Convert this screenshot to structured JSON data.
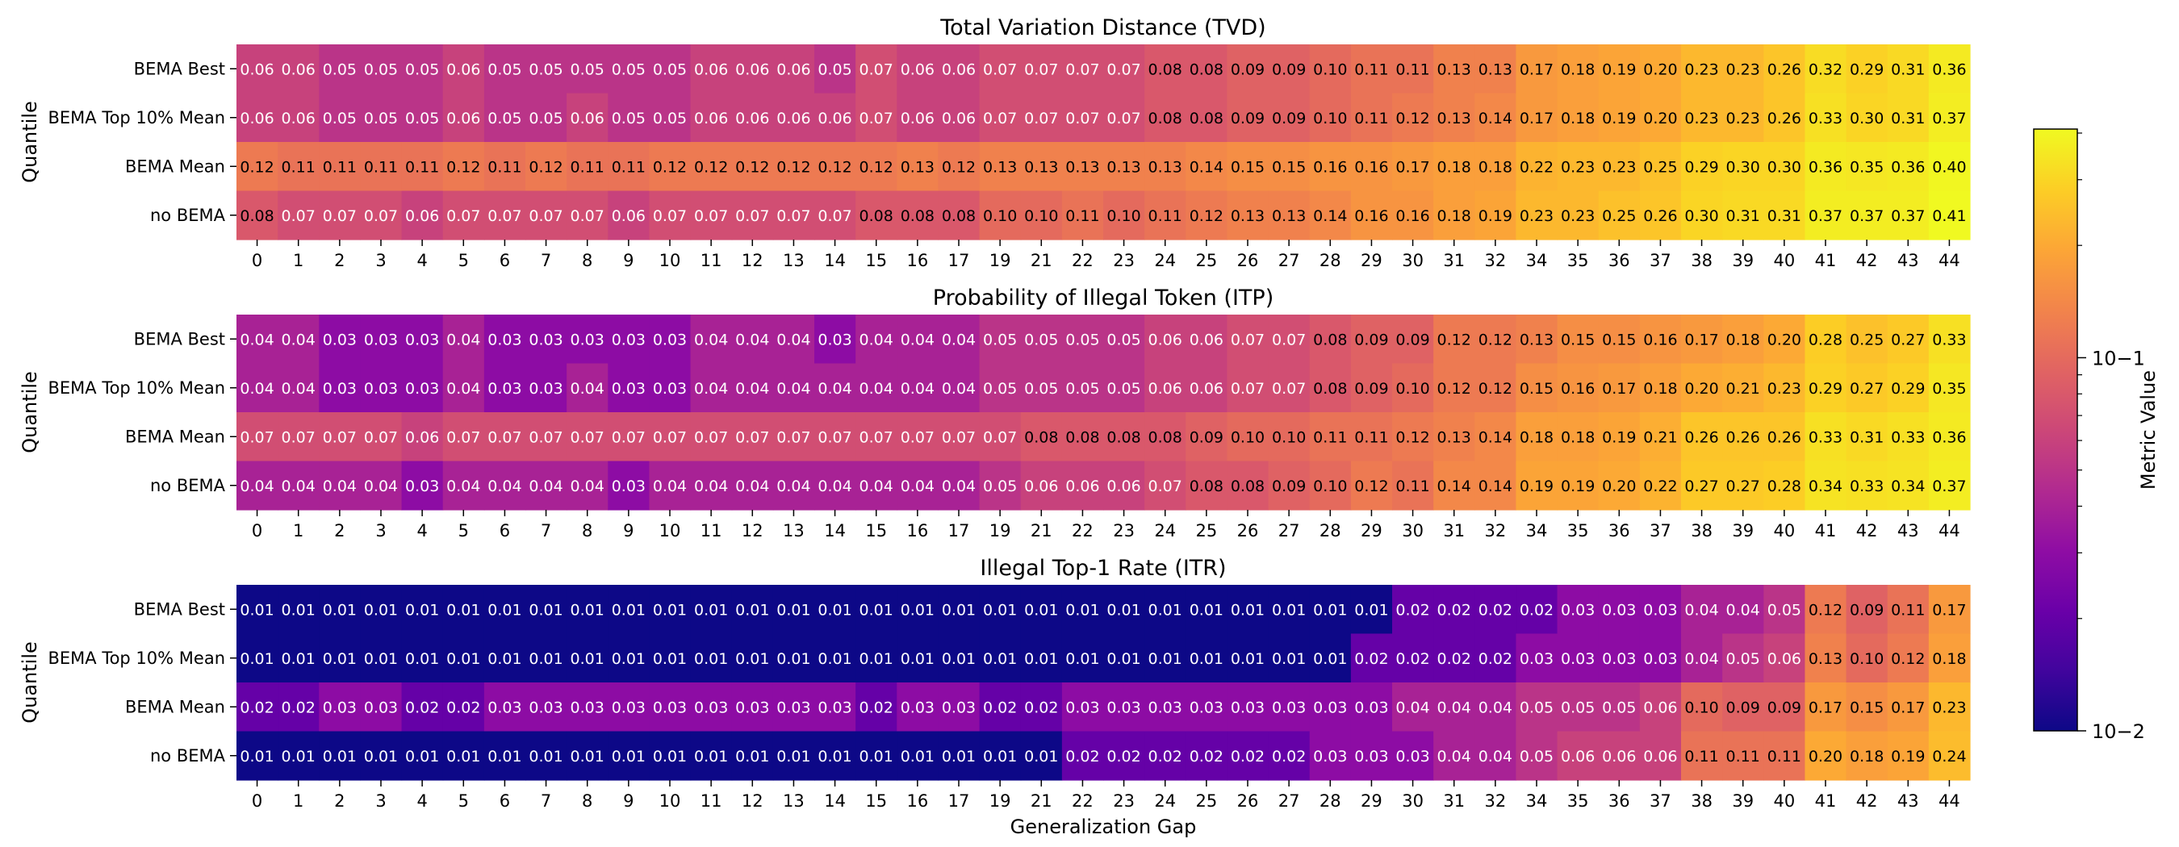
{
  "chart_data": {
    "type": "heatmap",
    "color_scale": "plasma-log",
    "xlabel": "Generalization Gap",
    "ylabel": "Quantile",
    "rows": [
      "BEMA Best",
      "BEMA Top 10% Mean",
      "BEMA Mean",
      "no BEMA"
    ],
    "columns": [
      "0",
      "1",
      "2",
      "3",
      "4",
      "5",
      "6",
      "7",
      "8",
      "9",
      "10",
      "11",
      "12",
      "13",
      "14",
      "15",
      "16",
      "17",
      "19",
      "21",
      "22",
      "23",
      "24",
      "25",
      "26",
      "27",
      "28",
      "29",
      "30",
      "31",
      "32",
      "34",
      "35",
      "36",
      "37",
      "38",
      "39",
      "40",
      "41",
      "42",
      "43",
      "44"
    ],
    "panels": [
      {
        "title": "Total Variation Distance (TVD)",
        "values": [
          [
            "0.06",
            "0.06",
            "0.05",
            "0.05",
            "0.05",
            "0.06",
            "0.05",
            "0.05",
            "0.05",
            "0.05",
            "0.05",
            "0.06",
            "0.06",
            "0.06",
            "0.05",
            "0.07",
            "0.06",
            "0.06",
            "0.07",
            "0.07",
            "0.07",
            "0.07",
            "0.08",
            "0.08",
            "0.09",
            "0.09",
            "0.10",
            "0.11",
            "0.11",
            "0.13",
            "0.13",
            "0.17",
            "0.18",
            "0.19",
            "0.20",
            "0.23",
            "0.23",
            "0.26",
            "0.32",
            "0.29",
            "0.31",
            "0.36"
          ],
          [
            "0.06",
            "0.06",
            "0.05",
            "0.05",
            "0.05",
            "0.06",
            "0.05",
            "0.05",
            "0.06",
            "0.05",
            "0.05",
            "0.06",
            "0.06",
            "0.06",
            "0.06",
            "0.07",
            "0.06",
            "0.06",
            "0.07",
            "0.07",
            "0.07",
            "0.07",
            "0.08",
            "0.08",
            "0.09",
            "0.09",
            "0.10",
            "0.11",
            "0.12",
            "0.13",
            "0.14",
            "0.17",
            "0.18",
            "0.19",
            "0.20",
            "0.23",
            "0.23",
            "0.26",
            "0.33",
            "0.30",
            "0.31",
            "0.37"
          ],
          [
            "0.12",
            "0.11",
            "0.11",
            "0.11",
            "0.11",
            "0.12",
            "0.11",
            "0.12",
            "0.11",
            "0.11",
            "0.12",
            "0.12",
            "0.12",
            "0.12",
            "0.12",
            "0.12",
            "0.13",
            "0.12",
            "0.13",
            "0.13",
            "0.13",
            "0.13",
            "0.13",
            "0.14",
            "0.15",
            "0.15",
            "0.16",
            "0.16",
            "0.17",
            "0.18",
            "0.18",
            "0.22",
            "0.23",
            "0.23",
            "0.25",
            "0.29",
            "0.30",
            "0.30",
            "0.36",
            "0.35",
            "0.36",
            "0.40"
          ],
          [
            "0.08",
            "0.07",
            "0.07",
            "0.07",
            "0.06",
            "0.07",
            "0.07",
            "0.07",
            "0.07",
            "0.06",
            "0.07",
            "0.07",
            "0.07",
            "0.07",
            "0.07",
            "0.08",
            "0.08",
            "0.08",
            "0.10",
            "0.10",
            "0.11",
            "0.10",
            "0.11",
            "0.12",
            "0.13",
            "0.13",
            "0.14",
            "0.16",
            "0.16",
            "0.18",
            "0.19",
            "0.23",
            "0.23",
            "0.25",
            "0.26",
            "0.30",
            "0.31",
            "0.31",
            "0.37",
            "0.37",
            "0.37",
            "0.41"
          ]
        ]
      },
      {
        "title": "Probability of Illegal Token (ITP)",
        "values": [
          [
            "0.04",
            "0.04",
            "0.03",
            "0.03",
            "0.03",
            "0.04",
            "0.03",
            "0.03",
            "0.03",
            "0.03",
            "0.03",
            "0.04",
            "0.04",
            "0.04",
            "0.03",
            "0.04",
            "0.04",
            "0.04",
            "0.05",
            "0.05",
            "0.05",
            "0.05",
            "0.06",
            "0.06",
            "0.07",
            "0.07",
            "0.08",
            "0.09",
            "0.09",
            "0.12",
            "0.12",
            "0.13",
            "0.15",
            "0.15",
            "0.16",
            "0.17",
            "0.18",
            "0.20",
            "0.28",
            "0.25",
            "0.27",
            "0.33"
          ],
          [
            "0.04",
            "0.04",
            "0.03",
            "0.03",
            "0.03",
            "0.04",
            "0.03",
            "0.03",
            "0.04",
            "0.03",
            "0.03",
            "0.04",
            "0.04",
            "0.04",
            "0.04",
            "0.04",
            "0.04",
            "0.04",
            "0.05",
            "0.05",
            "0.05",
            "0.05",
            "0.06",
            "0.06",
            "0.07",
            "0.07",
            "0.08",
            "0.09",
            "0.10",
            "0.12",
            "0.12",
            "0.15",
            "0.16",
            "0.17",
            "0.18",
            "0.20",
            "0.21",
            "0.23",
            "0.29",
            "0.27",
            "0.29",
            "0.35"
          ],
          [
            "0.07",
            "0.07",
            "0.07",
            "0.07",
            "0.06",
            "0.07",
            "0.07",
            "0.07",
            "0.07",
            "0.07",
            "0.07",
            "0.07",
            "0.07",
            "0.07",
            "0.07",
            "0.07",
            "0.07",
            "0.07",
            "0.07",
            "0.08",
            "0.08",
            "0.08",
            "0.08",
            "0.09",
            "0.10",
            "0.10",
            "0.11",
            "0.11",
            "0.12",
            "0.13",
            "0.14",
            "0.18",
            "0.18",
            "0.19",
            "0.21",
            "0.26",
            "0.26",
            "0.26",
            "0.33",
            "0.31",
            "0.33",
            "0.36"
          ],
          [
            "0.04",
            "0.04",
            "0.04",
            "0.04",
            "0.03",
            "0.04",
            "0.04",
            "0.04",
            "0.04",
            "0.03",
            "0.04",
            "0.04",
            "0.04",
            "0.04",
            "0.04",
            "0.04",
            "0.04",
            "0.04",
            "0.05",
            "0.06",
            "0.06",
            "0.06",
            "0.07",
            "0.08",
            "0.08",
            "0.09",
            "0.10",
            "0.12",
            "0.11",
            "0.14",
            "0.14",
            "0.19",
            "0.19",
            "0.20",
            "0.22",
            "0.27",
            "0.27",
            "0.28",
            "0.34",
            "0.33",
            "0.34",
            "0.37"
          ]
        ]
      },
      {
        "title": "Illegal Top-1 Rate (ITR)",
        "values": [
          [
            "0.01",
            "0.01",
            "0.01",
            "0.01",
            "0.01",
            "0.01",
            "0.01",
            "0.01",
            "0.01",
            "0.01",
            "0.01",
            "0.01",
            "0.01",
            "0.01",
            "0.01",
            "0.01",
            "0.01",
            "0.01",
            "0.01",
            "0.01",
            "0.01",
            "0.01",
            "0.01",
            "0.01",
            "0.01",
            "0.01",
            "0.01",
            "0.01",
            "0.02",
            "0.02",
            "0.02",
            "0.02",
            "0.03",
            "0.03",
            "0.03",
            "0.04",
            "0.04",
            "0.05",
            "0.12",
            "0.09",
            "0.11",
            "0.17"
          ],
          [
            "0.01",
            "0.01",
            "0.01",
            "0.01",
            "0.01",
            "0.01",
            "0.01",
            "0.01",
            "0.01",
            "0.01",
            "0.01",
            "0.01",
            "0.01",
            "0.01",
            "0.01",
            "0.01",
            "0.01",
            "0.01",
            "0.01",
            "0.01",
            "0.01",
            "0.01",
            "0.01",
            "0.01",
            "0.01",
            "0.01",
            "0.01",
            "0.02",
            "0.02",
            "0.02",
            "0.02",
            "0.03",
            "0.03",
            "0.03",
            "0.03",
            "0.04",
            "0.05",
            "0.06",
            "0.13",
            "0.10",
            "0.12",
            "0.18"
          ],
          [
            "0.02",
            "0.02",
            "0.03",
            "0.03",
            "0.02",
            "0.02",
            "0.03",
            "0.03",
            "0.03",
            "0.03",
            "0.03",
            "0.03",
            "0.03",
            "0.03",
            "0.03",
            "0.02",
            "0.03",
            "0.03",
            "0.02",
            "0.02",
            "0.03",
            "0.03",
            "0.03",
            "0.03",
            "0.03",
            "0.03",
            "0.03",
            "0.03",
            "0.04",
            "0.04",
            "0.04",
            "0.05",
            "0.05",
            "0.05",
            "0.06",
            "0.10",
            "0.09",
            "0.09",
            "0.17",
            "0.15",
            "0.17",
            "0.23"
          ],
          [
            "0.01",
            "0.01",
            "0.01",
            "0.01",
            "0.01",
            "0.01",
            "0.01",
            "0.01",
            "0.01",
            "0.01",
            "0.01",
            "0.01",
            "0.01",
            "0.01",
            "0.01",
            "0.01",
            "0.01",
            "0.01",
            "0.01",
            "0.01",
            "0.02",
            "0.02",
            "0.02",
            "0.02",
            "0.02",
            "0.02",
            "0.03",
            "0.03",
            "0.03",
            "0.04",
            "0.04",
            "0.05",
            "0.06",
            "0.06",
            "0.06",
            "0.11",
            "0.11",
            "0.11",
            "0.20",
            "0.18",
            "0.19",
            "0.24"
          ]
        ]
      }
    ],
    "colorbar": {
      "label": "Metric Value",
      "scale": "log",
      "range": [
        0.01,
        0.41
      ],
      "major_ticks": [
        {
          "value": 0.1,
          "label": "10−1"
        },
        {
          "value": 0.01,
          "label": "10−2"
        }
      ],
      "minor_ticks": [
        0.02,
        0.03,
        0.04,
        0.05,
        0.06,
        0.07,
        0.08,
        0.09,
        0.2,
        0.3,
        0.4
      ]
    }
  }
}
